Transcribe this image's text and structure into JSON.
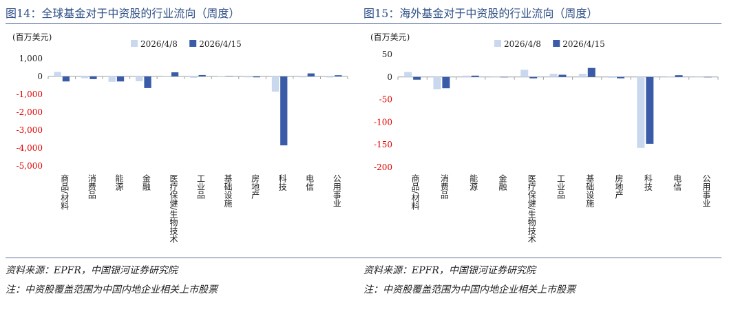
{
  "colors": {
    "series1": "#c9d8ee",
    "series2": "#3a5ca8",
    "negative_tick": "#e00000",
    "title": "#2f4f86",
    "rule": "#5a6f9e"
  },
  "panels": [
    {
      "title": "图14：全球基金对于中资股的行业流向（周度）",
      "source": "资料来源：EPFR，中国银河证券研究院",
      "note": "注：中资股覆盖范围为中国内地企业相关上市股票"
    },
    {
      "title": "图15：海外基金对于中资股的行业流向（周度）",
      "source": "资料来源：EPFR，中国银河证券研究院",
      "note": "注：中资股覆盖范围为中国内地企业相关上市股票"
    }
  ],
  "chart_data": [
    {
      "type": "bar",
      "ylabel": "(百万美元)",
      "ylim": [
        -5000,
        1000
      ],
      "yticks": [
        1000,
        0,
        -1000,
        -2000,
        -3000,
        -4000,
        -5000
      ],
      "ytick_labels": [
        "1,000",
        "0",
        "-1,000",
        "-2,000",
        "-3,000",
        "-4,000",
        "-5,000"
      ],
      "categories": [
        "商品/材料",
        "消费品",
        "能源",
        "金融",
        "医疗保健/生物技术",
        "工业品",
        "基础设施",
        "房地产",
        "科技",
        "电信",
        "公用事业"
      ],
      "legend_position": "top",
      "series": [
        {
          "name": "2026/4/8",
          "values": [
            250,
            -100,
            -300,
            -270,
            30,
            -80,
            20,
            -50,
            -850,
            -50,
            -60
          ]
        },
        {
          "name": "2026/4/15",
          "values": [
            -280,
            -150,
            -280,
            -650,
            230,
            80,
            20,
            -50,
            -3850,
            170,
            70
          ]
        }
      ]
    },
    {
      "type": "bar",
      "ylabel": "(百万美元)",
      "ylim": [
        -200,
        50
      ],
      "yticks": [
        50,
        0,
        -50,
        -100,
        -150,
        -200
      ],
      "ytick_labels": [
        "50",
        "0",
        "-50",
        "-100",
        "-150",
        "-200"
      ],
      "categories": [
        "商品/材料",
        "消费品",
        "能源",
        "金融",
        "医疗保健/生物技术",
        "工业品",
        "基础设施",
        "房地产",
        "科技",
        "电信",
        "公用事业"
      ],
      "legend_position": "top",
      "series": [
        {
          "name": "2026/4/8",
          "values": [
            11,
            -27,
            3,
            0,
            16,
            7,
            7,
            -2,
            -157,
            1,
            0
          ]
        },
        {
          "name": "2026/4/15",
          "values": [
            -6,
            -25,
            3,
            0,
            -3,
            5,
            20,
            -3,
            -148,
            4,
            0
          ]
        }
      ]
    }
  ]
}
